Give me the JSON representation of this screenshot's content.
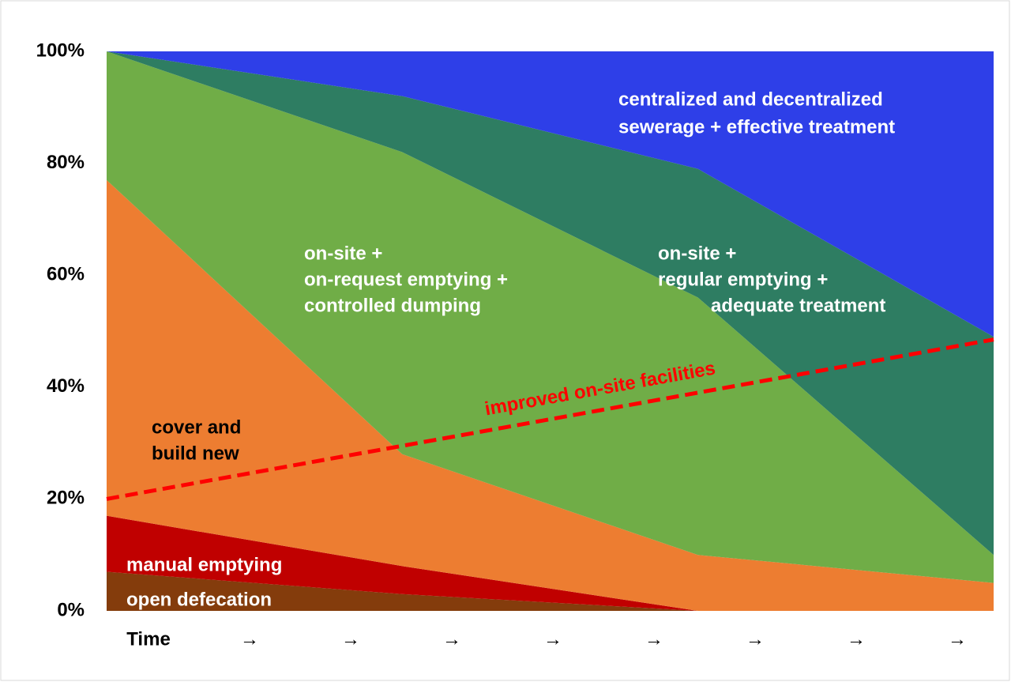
{
  "chart_data": {
    "type": "stacked_area",
    "x": [
      0,
      1,
      2,
      3
    ],
    "xlim": [
      0,
      3
    ],
    "categories": [
      "Time",
      "→",
      "→",
      "→",
      "→",
      "→",
      "→",
      "→",
      "→"
    ],
    "ylim": [
      0,
      100
    ],
    "yticks": [
      {
        "value": 0,
        "label": "0%"
      },
      {
        "value": 20,
        "label": "20%"
      },
      {
        "value": 40,
        "label": "40%"
      },
      {
        "value": 60,
        "label": "60%"
      },
      {
        "value": 80,
        "label": "80%"
      },
      {
        "value": 100,
        "label": "100%"
      }
    ],
    "series": [
      {
        "name": [
          "open defecation"
        ],
        "color": "#843c0c",
        "label_color": "#ffffff",
        "values": [
          7,
          3,
          0,
          0
        ]
      },
      {
        "name": [
          "manual emptying"
        ],
        "color": "#c00000",
        "label_color": "#ffffff",
        "values": [
          10,
          5,
          0,
          0
        ]
      },
      {
        "name": [
          "cover and",
          "build new"
        ],
        "color": "#ed7d31",
        "label_color": "#000000",
        "values": [
          60,
          20,
          10,
          5
        ]
      },
      {
        "name": [
          "on-site +",
          "on-request emptying +",
          "controlled dumping"
        ],
        "color": "#70ad47",
        "label_color": "#ffffff",
        "values": [
          23,
          54,
          46,
          5
        ]
      },
      {
        "name": [
          "on-site +",
          "regular emptying +",
          "adequate treatment"
        ],
        "color": "#2e7d62",
        "label_color": "#ffffff",
        "values": [
          0,
          10,
          23,
          39
        ]
      },
      {
        "name": [
          "centralized and decentralized",
          "sewerage + effective treatment"
        ],
        "color": "#2e3fe8",
        "label_color": "#ffffff",
        "values": [
          0,
          8,
          21,
          51
        ]
      }
    ],
    "trend_line": {
      "label": "improved on-site facilities",
      "color": "#ff0000",
      "x": [
        0,
        3
      ],
      "values": [
        20,
        48.5
      ]
    }
  }
}
